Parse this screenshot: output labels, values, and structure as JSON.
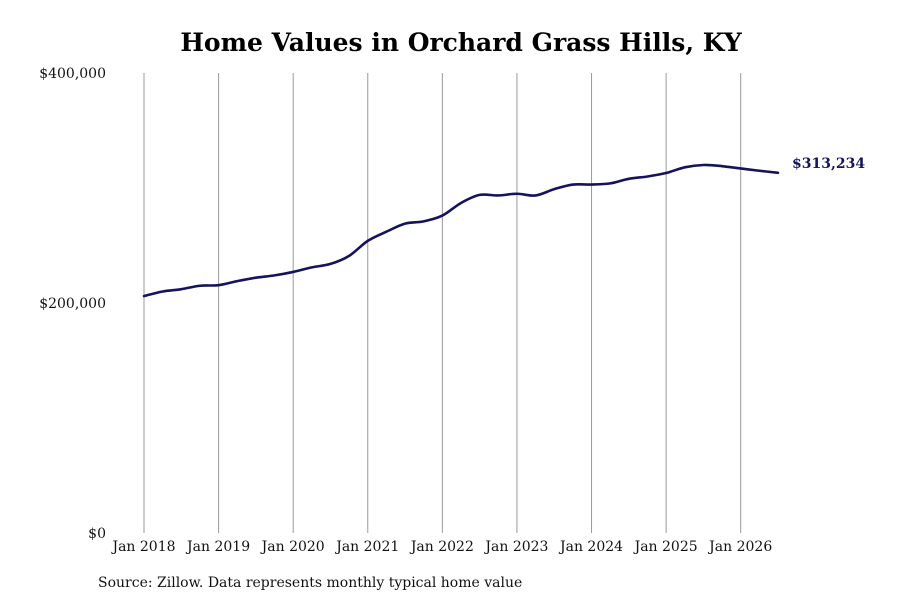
{
  "chart_data": {
    "type": "line",
    "title": "Home Values in Orchard Grass Hills, KY",
    "source_note": "Source: Zillow. Data represents monthly typical home value",
    "line_color": "#13135e",
    "grid": "vertical",
    "ylim": [
      0,
      400000
    ],
    "y_ticks": [
      {
        "value": 0,
        "label": "$0"
      },
      {
        "value": 200000,
        "label": "$200,000"
      },
      {
        "value": 400000,
        "label": "$400,000"
      }
    ],
    "x_ticks": [
      {
        "value": 2018,
        "label": "Jan 2018"
      },
      {
        "value": 2019,
        "label": "Jan 2019"
      },
      {
        "value": 2020,
        "label": "Jan 2020"
      },
      {
        "value": 2021,
        "label": "Jan 2021"
      },
      {
        "value": 2022,
        "label": "Jan 2022"
      },
      {
        "value": 2023,
        "label": "Jan 2023"
      },
      {
        "value": 2024,
        "label": "Jan 2024"
      },
      {
        "value": 2025,
        "label": "Jan 2025"
      },
      {
        "value": 2026,
        "label": "Jan 2026"
      }
    ],
    "xlim": [
      2018,
      2026.5
    ],
    "series": [
      {
        "x": [
          2018.0,
          2018.25,
          2018.5,
          2018.75,
          2019.0,
          2019.25,
          2019.5,
          2019.75,
          2020.0,
          2020.25,
          2020.5,
          2020.75,
          2021.0,
          2021.25,
          2021.5,
          2021.75,
          2022.0,
          2022.25,
          2022.5,
          2022.75,
          2023.0,
          2023.25,
          2023.5,
          2023.75,
          2024.0,
          2024.25,
          2024.5,
          2024.75,
          2025.0,
          2025.25,
          2025.5,
          2025.75,
          2026.0,
          2026.25,
          2026.5
        ],
        "values": [
          206000,
          210000,
          212000,
          215000,
          215500,
          219000,
          222000,
          224000,
          227000,
          231000,
          234000,
          241000,
          254000,
          262000,
          269000,
          271000,
          276000,
          287000,
          294000,
          293500,
          295000,
          293500,
          299000,
          303000,
          303000,
          304000,
          308000,
          310000,
          313000,
          318000,
          320000,
          319000,
          317000,
          315000,
          313234
        ]
      }
    ],
    "end_label": "$313,234"
  }
}
